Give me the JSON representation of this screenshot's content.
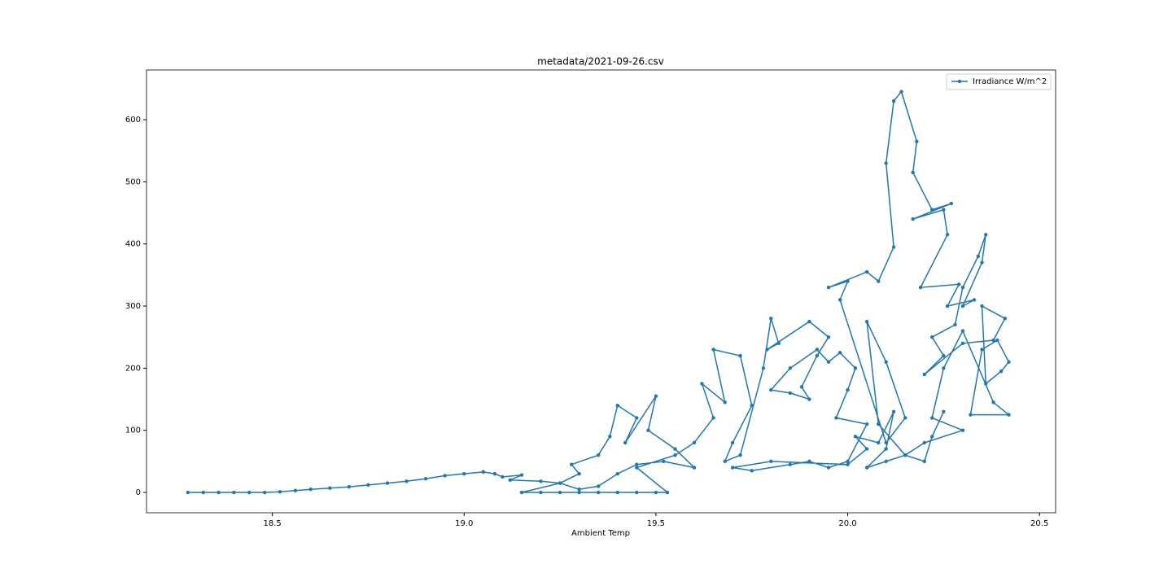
{
  "chart_data": {
    "type": "line",
    "title": "metadata/2021-09-26.csv",
    "x_label": "Ambient Temp",
    "x": [
      18.28,
      18.32,
      18.36,
      18.4,
      18.44,
      18.48,
      18.52,
      18.56,
      18.6,
      18.65,
      18.7,
      18.75,
      18.8,
      18.85,
      18.9,
      18.95,
      19.0,
      19.05,
      19.08,
      19.1,
      19.15,
      19.12,
      19.2,
      19.25,
      19.3,
      19.28,
      19.35,
      19.38,
      19.4,
      19.45,
      19.42,
      19.5,
      19.48,
      19.55,
      19.6,
      19.52,
      19.45,
      19.4,
      19.35,
      19.3,
      19.25,
      19.15,
      19.2,
      19.25,
      19.3,
      19.35,
      19.4,
      19.45,
      19.5,
      19.53,
      19.45,
      19.55,
      19.6,
      19.65,
      19.62,
      19.68,
      19.65,
      19.72,
      19.75,
      19.7,
      19.68,
      19.72,
      19.78,
      19.8,
      19.82,
      19.79,
      19.9,
      19.95,
      19.92,
      19.88,
      19.9,
      19.85,
      19.8,
      19.85,
      19.92,
      19.95,
      19.98,
      20.02,
      20.0,
      19.97,
      20.05,
      20.0,
      19.95,
      19.9,
      19.85,
      19.75,
      19.7,
      19.8,
      20.0,
      20.05,
      20.02,
      20.08,
      20.12,
      20.1,
      20.05,
      20.1,
      20.15,
      20.08,
      20.05,
      20.1,
      20.15,
      20.1,
      19.98,
      20.0,
      19.95,
      20.05,
      20.08,
      20.12,
      20.1,
      20.12,
      20.14,
      20.18,
      20.17,
      20.22,
      20.27,
      20.17,
      20.25,
      20.26,
      20.19,
      20.29,
      20.26,
      20.33,
      20.3,
      20.35,
      20.36,
      20.34,
      20.3,
      20.28,
      20.22,
      20.25,
      20.2,
      20.3,
      20.38,
      20.41,
      20.35,
      20.36,
      20.4,
      20.42,
      20.39,
      20.35,
      20.32,
      20.42,
      20.38,
      20.3,
      20.25,
      20.22,
      20.3,
      20.2,
      20.15,
      20.2,
      20.22,
      20.25
    ],
    "series": [
      {
        "name": "Irradiance W/m^2",
        "color": "#1f77b4",
        "values": [
          0,
          0,
          0,
          0,
          0,
          0,
          1,
          3,
          5,
          7,
          9,
          12,
          15,
          18,
          22,
          27,
          30,
          33,
          30,
          25,
          28,
          20,
          18,
          15,
          30,
          45,
          60,
          90,
          140,
          120,
          80,
          155,
          100,
          70,
          40,
          50,
          45,
          30,
          10,
          5,
          15,
          0,
          0,
          0,
          0,
          0,
          0,
          0,
          0,
          0,
          40,
          60,
          80,
          120,
          175,
          145,
          230,
          220,
          140,
          80,
          50,
          60,
          200,
          280,
          240,
          230,
          275,
          250,
          220,
          170,
          150,
          160,
          165,
          200,
          230,
          210,
          225,
          200,
          165,
          120,
          110,
          50,
          40,
          50,
          45,
          35,
          40,
          50,
          45,
          70,
          90,
          80,
          130,
          70,
          40,
          50,
          60,
          110,
          275,
          210,
          120,
          80,
          310,
          340,
          330,
          355,
          340,
          395,
          530,
          630,
          645,
          565,
          515,
          455,
          465,
          440,
          455,
          415,
          330,
          335,
          300,
          310,
          300,
          370,
          415,
          380,
          330,
          270,
          250,
          220,
          190,
          240,
          245,
          280,
          300,
          175,
          195,
          210,
          245,
          230,
          125,
          125,
          145,
          260,
          200,
          120,
          100,
          80,
          60,
          50,
          90,
          130
        ]
      }
    ],
    "xlim": [
      18.172,
      20.542
    ],
    "ylim": [
      -32.7,
      680
    ],
    "xticks": [
      18.5,
      {
        "value": 19,
        "label": "19.0"
      },
      19.5,
      {
        "value": 20,
        "label": "20.0"
      },
      20.5
    ],
    "yticks": [
      0,
      100,
      200,
      300,
      400,
      500,
      600
    ],
    "legend": "upper right"
  }
}
